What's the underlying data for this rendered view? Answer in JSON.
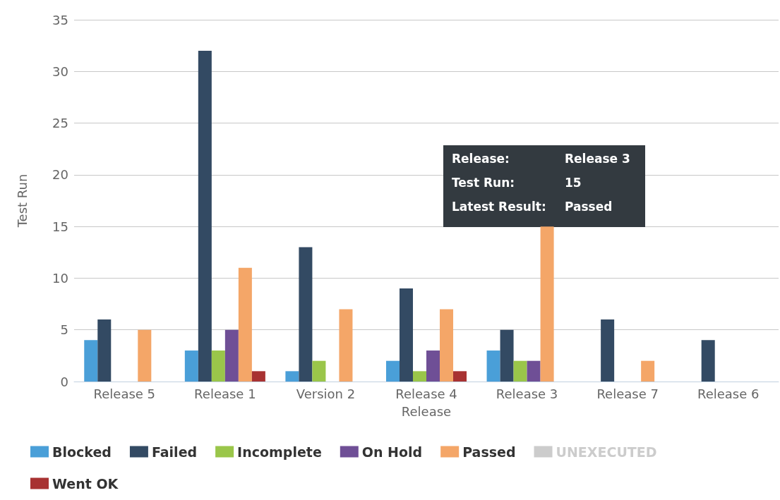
{
  "chart_data": {
    "type": "bar",
    "xlabel": "Release",
    "ylabel": "Test Run",
    "categories": [
      "Release 5",
      "Release 1",
      "Version 2",
      "Release 4",
      "Release 3",
      "Release 7",
      "Release 6"
    ],
    "series": [
      {
        "name": "Blocked",
        "color": "#4a9fd8",
        "values": [
          4,
          3,
          1,
          2,
          3,
          null,
          null
        ]
      },
      {
        "name": "Failed",
        "color": "#334a63",
        "values": [
          6,
          32,
          13,
          9,
          5,
          6,
          4
        ]
      },
      {
        "name": "Incomplete",
        "color": "#9ac64a",
        "values": [
          null,
          3,
          2,
          1,
          2,
          null,
          null
        ]
      },
      {
        "name": "On Hold",
        "color": "#6f4f96",
        "values": [
          null,
          5,
          null,
          3,
          2,
          null,
          null
        ]
      },
      {
        "name": "Passed",
        "color": "#f4a668",
        "values": [
          5,
          11,
          7,
          7,
          15,
          2,
          null
        ]
      },
      {
        "name": "UNEXECUTED",
        "color": "#cccccc",
        "values": [
          null,
          null,
          null,
          null,
          null,
          null,
          null
        ]
      },
      {
        "name": "Went OK",
        "color": "#a83232",
        "values": [
          null,
          1,
          null,
          1,
          null,
          null,
          null
        ]
      }
    ],
    "ylim": [
      0,
      35
    ],
    "yticks": [
      0,
      5,
      10,
      15,
      20,
      25,
      30,
      35
    ],
    "grid": "y",
    "legend": "bottom left",
    "annotations": [
      "Release:",
      "Release 3",
      "Test Run:",
      "15",
      "Latest Result:",
      "Passed"
    ]
  }
}
